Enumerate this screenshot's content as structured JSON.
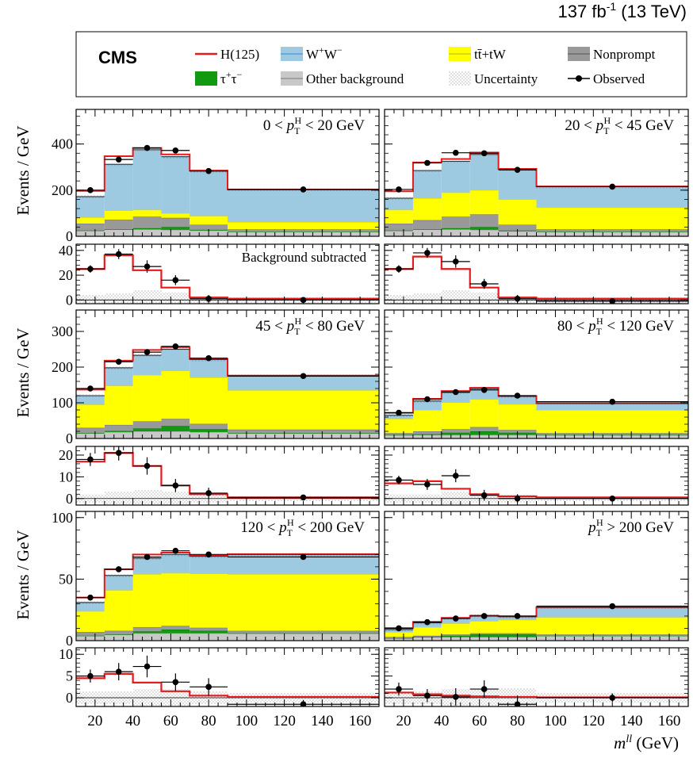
{
  "header": {
    "lumi": "137 fb",
    "lumi_exp": "-1",
    "energy": " (13 TeV)",
    "experiment": "CMS"
  },
  "legend": [
    {
      "label": "H(125)",
      "style": "line",
      "color": "#e41a1c"
    },
    {
      "label": "W⁺W⁻",
      "style": "fill",
      "color": "#9ecae1",
      "edge": "#6fa8dc"
    },
    {
      "label": "tt̄+tW",
      "style": "fill",
      "color": "#ffff00",
      "edge": "#e0d800"
    },
    {
      "label": "Nonprompt",
      "style": "fill",
      "color": "#999999",
      "edge": "#777777"
    },
    {
      "label": "τ⁺τ⁻",
      "style": "fill",
      "color": "#119911",
      "edge": "#0a7a0a"
    },
    {
      "label": "Other background",
      "style": "fill",
      "color": "#c8c8c8",
      "edge": "#a0a0a0"
    },
    {
      "label": "Uncertainty",
      "style": "hatch",
      "color": "#555555"
    },
    {
      "label": "Observed",
      "style": "marker",
      "color": "#000000"
    }
  ],
  "axes": {
    "ylabel": "Events / GeV",
    "xlabel_main": "m",
    "xlabel_sup": "ll",
    "xlabel_unit": " (GeV)",
    "xticks": [
      20,
      40,
      60,
      80,
      100,
      120,
      140,
      160
    ],
    "xlim": [
      10,
      170
    ]
  },
  "chart_data": [
    {
      "type": "area",
      "kind": "stacked histogram",
      "label": "0 < pT^H < 20 GeV",
      "label_parts": [
        "0 < ",
        "p",
        "T",
        "H",
        " < 20 GeV"
      ],
      "bin_edges": [
        10,
        25,
        40,
        55,
        70,
        90,
        170
      ],
      "ylim": [
        0,
        550
      ],
      "yticks": [
        0,
        200,
        400
      ],
      "stack": {
        "Other background": [
          25,
          30,
          30,
          28,
          25,
          20
        ],
        "τ⁺τ⁻": [
          0,
          0,
          5,
          12,
          3,
          0
        ],
        "Nonprompt": [
          30,
          42,
          50,
          40,
          22,
          10
        ],
        "tt̄+tW": [
          27,
          40,
          30,
          20,
          38,
          32
        ],
        "W⁺W⁻": [
          90,
          200,
          260,
          245,
          195,
          140
        ],
        "H(125)": [
          25,
          35,
          8,
          10,
          2,
          1
        ]
      },
      "observed": {
        "x": [
          17.5,
          32.5,
          47.5,
          62.5,
          80,
          130
        ],
        "y": [
          200,
          333,
          383,
          372,
          283,
          203
        ]
      }
    },
    {
      "type": "area",
      "kind": "background-subtracted",
      "label": "Background subtracted",
      "bin_edges": [
        10,
        25,
        40,
        55,
        70,
        90,
        170
      ],
      "ylim": [
        -3,
        45
      ],
      "yticks": [
        0,
        20,
        40
      ],
      "signal": [
        25,
        36,
        24,
        10,
        2,
        1
      ],
      "uncertainty": [
        4,
        5,
        8,
        6,
        3,
        2
      ],
      "observed": {
        "x": [
          17.5,
          32.5,
          47.5,
          62.5,
          80,
          130
        ],
        "y": [
          25,
          37,
          27,
          16,
          1,
          0
        ],
        "yerr": [
          3,
          4,
          5,
          4,
          3,
          1
        ]
      }
    },
    {
      "type": "area",
      "kind": "stacked histogram",
      "label": "20 < pT^H < 45 GeV",
      "label_parts": [
        "20 < ",
        "p",
        "T",
        "H",
        " < 45 GeV"
      ],
      "bin_edges": [
        10,
        25,
        40,
        55,
        70,
        90,
        170
      ],
      "ylim": [
        0,
        550
      ],
      "yticks": [
        0,
        200,
        400
      ],
      "stack": {
        "Other background": [
          25,
          30,
          30,
          28,
          22,
          20
        ],
        "τ⁺τ⁻": [
          0,
          0,
          5,
          12,
          3,
          0
        ],
        "Nonprompt": [
          30,
          40,
          50,
          55,
          25,
          10
        ],
        "tt̄+tW": [
          60,
          95,
          105,
          105,
          110,
          95
        ],
        "W⁺W⁻": [
          50,
          120,
          135,
          155,
          130,
          90
        ],
        "H(125)": [
          30,
          35,
          10,
          8,
          2,
          1
        ]
      },
      "observed": {
        "x": [
          17.5,
          32.5,
          47.5,
          62.5,
          80,
          130
        ],
        "y": [
          203,
          318,
          362,
          360,
          288,
          215
        ]
      }
    },
    {
      "type": "area",
      "kind": "background-subtracted",
      "label": "",
      "bin_edges": [
        10,
        25,
        40,
        55,
        70,
        90,
        170
      ],
      "ylim": [
        -3,
        45
      ],
      "yticks": [
        0,
        20,
        40
      ],
      "signal": [
        25,
        35,
        25,
        10,
        2,
        1
      ],
      "uncertainty": [
        4,
        5,
        8,
        6,
        3,
        2
      ],
      "observed": {
        "x": [
          17.5,
          32.5,
          47.5,
          62.5,
          80,
          130
        ],
        "y": [
          25,
          38,
          31,
          13,
          1,
          -1
        ],
        "yerr": [
          3,
          4,
          5,
          4,
          3,
          1
        ]
      }
    },
    {
      "type": "area",
      "kind": "stacked histogram",
      "label": "45 < pT^H < 80 GeV",
      "label_parts": [
        "45 < ",
        "p",
        "T",
        "H",
        " < 80 GeV"
      ],
      "bin_edges": [
        10,
        25,
        40,
        55,
        70,
        90,
        170
      ],
      "ylim": [
        0,
        360
      ],
      "yticks": [
        0,
        100,
        200,
        300
      ],
      "stack": {
        "Other background": [
          15,
          18,
          20,
          20,
          18,
          15
        ],
        "τ⁺τ⁻": [
          0,
          3,
          8,
          15,
          8,
          0
        ],
        "Nonprompt": [
          15,
          17,
          20,
          20,
          15,
          10
        ],
        "tt̄+tW": [
          65,
          110,
          130,
          135,
          130,
          110
        ],
        "W⁺W⁻": [
          25,
          50,
          55,
          60,
          50,
          40
        ],
        "H(125)": [
          17,
          20,
          15,
          6,
          2,
          1
        ]
      },
      "observed": {
        "x": [
          17.5,
          32.5,
          47.5,
          62.5,
          80,
          130
        ],
        "y": [
          140,
          215,
          242,
          258,
          225,
          175
        ]
      }
    },
    {
      "type": "area",
      "kind": "background-subtracted",
      "label": "",
      "bin_edges": [
        10,
        25,
        40,
        55,
        70,
        90,
        170
      ],
      "ylim": [
        -3,
        24
      ],
      "yticks": [
        0,
        10,
        20
      ],
      "signal": [
        17,
        21,
        15,
        6,
        2,
        0.5
      ],
      "uncertainty": [
        2,
        3,
        4,
        3,
        2,
        1
      ],
      "observed": {
        "x": [
          17.5,
          32.5,
          47.5,
          62.5,
          80,
          130
        ],
        "y": [
          18,
          21,
          15,
          6,
          2.5,
          0.5
        ],
        "yerr": [
          3,
          3.5,
          4,
          3,
          2.5,
          1
        ]
      }
    },
    {
      "type": "area",
      "kind": "stacked histogram",
      "label": "80 < pT^H < 120 GeV",
      "label_parts": [
        "80 < ",
        "p",
        "T",
        "H",
        " < 120 GeV"
      ],
      "bin_edges": [
        10,
        25,
        40,
        55,
        70,
        90,
        170
      ],
      "ylim": [
        0,
        360
      ],
      "yticks": [
        0,
        100,
        200,
        300
      ],
      "stack": {
        "Other background": [
          10,
          10,
          10,
          10,
          10,
          10
        ],
        "τ⁺τ⁻": [
          0,
          2,
          6,
          10,
          6,
          0
        ],
        "Nonprompt": [
          5,
          8,
          10,
          12,
          8,
          5
        ],
        "tt̄+tW": [
          40,
          60,
          75,
          78,
          72,
          65
        ],
        "W⁺W⁻": [
          10,
          25,
          28,
          30,
          22,
          18
        ],
        "H(125)": [
          7,
          6,
          4,
          2,
          1,
          0.5
        ]
      },
      "observed": {
        "x": [
          17.5,
          32.5,
          47.5,
          62.5,
          80,
          130
        ],
        "y": [
          72,
          110,
          130,
          136,
          120,
          103
        ]
      }
    },
    {
      "type": "area",
      "kind": "background-subtracted",
      "label": "",
      "bin_edges": [
        10,
        25,
        40,
        55,
        70,
        90,
        170
      ],
      "ylim": [
        -3,
        24
      ],
      "yticks": [
        0,
        10,
        20
      ],
      "signal": [
        7,
        8,
        4.5,
        2,
        1,
        0.5
      ],
      "uncertainty": [
        2,
        2,
        3,
        2,
        2,
        1
      ],
      "observed": {
        "x": [
          17.5,
          32.5,
          47.5,
          62.5,
          80,
          130
        ],
        "y": [
          8.5,
          6.5,
          10.5,
          1.5,
          0,
          0
        ],
        "yerr": [
          2,
          2.5,
          3,
          2.5,
          2,
          1
        ]
      }
    },
    {
      "type": "area",
      "kind": "stacked histogram",
      "label": "120 < pT^H < 200 GeV",
      "label_parts": [
        "120 < ",
        "p",
        "T",
        "H",
        " < 200 GeV"
      ],
      "bin_edges": [
        10,
        25,
        40,
        55,
        70,
        90,
        170
      ],
      "ylim": [
        0,
        105
      ],
      "yticks": [
        0,
        50,
        100
      ],
      "stack": {
        "Other background": [
          4,
          5,
          6,
          6,
          6,
          6
        ],
        "τ⁺τ⁻": [
          0,
          0,
          1.5,
          3,
          2,
          0
        ],
        "Nonprompt": [
          3,
          3,
          3.5,
          3,
          2.5,
          2
        ],
        "tt̄+tW": [
          17,
          33,
          43,
          43,
          44,
          46
        ],
        "W⁺W⁻": [
          7,
          12,
          13,
          15,
          14,
          16
        ],
        "H(125)": [
          4,
          5,
          3,
          1.5,
          0.5,
          0.3
        ]
      },
      "observed": {
        "x": [
          17.5,
          32.5,
          47.5,
          62.5,
          80,
          130
        ],
        "y": [
          35,
          58,
          68,
          73,
          70,
          68
        ]
      }
    },
    {
      "type": "area",
      "kind": "background-subtracted",
      "label": "",
      "bin_edges": [
        10,
        25,
        40,
        55,
        70,
        90,
        170
      ],
      "ylim": [
        -2,
        11.5
      ],
      "yticks": [
        0,
        5,
        10
      ],
      "signal": [
        4.5,
        5.5,
        3.5,
        1.5,
        0.5,
        0.2
      ],
      "uncertainty": [
        1.5,
        1.5,
        2,
        2,
        1.5,
        1
      ],
      "observed": {
        "x": [
          17.5,
          32.5,
          47.5,
          62.5,
          80,
          130
        ],
        "y": [
          5,
          6,
          7.2,
          3.6,
          2.5,
          -1.5
        ],
        "yerr": [
          1.5,
          2,
          2.5,
          2,
          2,
          1
        ]
      }
    },
    {
      "type": "area",
      "kind": "stacked histogram",
      "label": "pT^H > 200 GeV",
      "label_parts": [
        "",
        "p",
        "T",
        "H",
        " > 200 GeV"
      ],
      "bin_edges": [
        10,
        25,
        40,
        55,
        70,
        90,
        170
      ],
      "ylim": [
        0,
        105
      ],
      "yticks": [
        0,
        50,
        100
      ],
      "stack": {
        "Other background": [
          2,
          3,
          3,
          3,
          3,
          4
        ],
        "τ⁺τ⁻": [
          0,
          0,
          1,
          2,
          2,
          0
        ],
        "Nonprompt": [
          1,
          1,
          1,
          1,
          1,
          1
        ],
        "tt̄+tW": [
          4,
          7,
          9,
          10,
          11,
          14
        ],
        "W⁺W⁻": [
          2,
          3.5,
          4,
          4,
          2.5,
          8
        ],
        "H(125)": [
          1.2,
          0.8,
          0.5,
          0.3,
          0.2,
          0.1
        ]
      },
      "observed": {
        "x": [
          17.5,
          32.5,
          47.5,
          62.5,
          80,
          130
        ],
        "y": [
          10,
          15,
          18,
          20,
          20,
          28
        ]
      }
    },
    {
      "type": "area",
      "kind": "background-subtracted",
      "label": "",
      "bin_edges": [
        10,
        25,
        40,
        55,
        70,
        90,
        170
      ],
      "ylim": [
        -2,
        11.5
      ],
      "yticks": [
        0,
        5,
        10
      ],
      "signal": [
        1.2,
        0.8,
        0.5,
        0.3,
        0.2,
        0.1
      ],
      "uncertainty": [
        1.5,
        1.5,
        2,
        2,
        2.2,
        1.2
      ],
      "observed": {
        "x": [
          17.5,
          32.5,
          47.5,
          62.5,
          80,
          130
        ],
        "y": [
          2,
          0.5,
          0.2,
          2,
          -1.5,
          0
        ],
        "yerr": [
          1.5,
          1.5,
          2,
          2,
          2,
          1
        ]
      }
    }
  ]
}
